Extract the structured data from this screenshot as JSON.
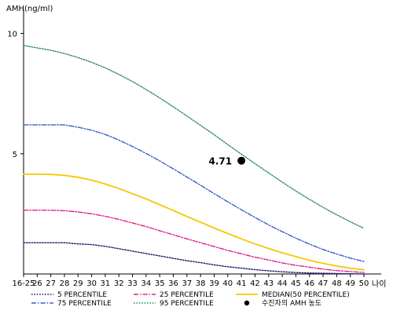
{
  "chart_data": {
    "type": "line",
    "ylabel": "AMH(ng/ml)",
    "xlabel": "나이",
    "x": [
      "16-25",
      "26",
      "27",
      "28",
      "29",
      "30",
      "31",
      "32",
      "33",
      "34",
      "35",
      "36",
      "37",
      "38",
      "39",
      "40",
      "41",
      "42",
      "43",
      "44",
      "45",
      "46",
      "47",
      "48",
      "49",
      "50"
    ],
    "ylim": [
      0,
      11
    ],
    "yticks": [
      5,
      10
    ],
    "series": [
      {
        "name": "5 PERCENTILE",
        "color": "#1a1a6e",
        "style": "dotted",
        "values": [
          1.3,
          1.3,
          1.3,
          1.3,
          1.25,
          1.22,
          1.15,
          1.05,
          0.95,
          0.85,
          0.75,
          0.65,
          0.55,
          0.47,
          0.38,
          0.3,
          0.24,
          0.18,
          0.13,
          0.09,
          0.06,
          0.04,
          0.03,
          0.02,
          0.01,
          0.0
        ]
      },
      {
        "name": "25 PERCENTILE",
        "color": "#e0208c",
        "style": "dashdot",
        "values": [
          2.65,
          2.65,
          2.65,
          2.63,
          2.58,
          2.5,
          2.4,
          2.27,
          2.12,
          1.97,
          1.8,
          1.63,
          1.46,
          1.3,
          1.14,
          0.98,
          0.84,
          0.7,
          0.58,
          0.46,
          0.36,
          0.28,
          0.2,
          0.14,
          0.1,
          0.06
        ]
      },
      {
        "name": "MEDIAN(50 PERCENTILE)",
        "color": "#f5c800",
        "style": "solid",
        "values": [
          4.15,
          4.15,
          4.14,
          4.1,
          4.02,
          3.9,
          3.74,
          3.55,
          3.34,
          3.12,
          2.88,
          2.64,
          2.39,
          2.15,
          1.91,
          1.68,
          1.46,
          1.25,
          1.06,
          0.88,
          0.72,
          0.57,
          0.44,
          0.33,
          0.24,
          0.17
        ]
      },
      {
        "name": "75 PERCENTILE",
        "color": "#3d5fc8",
        "style": "dashdot",
        "values": [
          6.2,
          6.2,
          6.2,
          6.2,
          6.1,
          5.98,
          5.8,
          5.57,
          5.3,
          5.01,
          4.7,
          4.37,
          4.03,
          3.69,
          3.34,
          3.0,
          2.67,
          2.35,
          2.04,
          1.76,
          1.49,
          1.24,
          1.02,
          0.83,
          0.66,
          0.52
        ]
      },
      {
        "name": "95 PERCENTILE",
        "color": "#2e8b57",
        "style": "dotted",
        "values": [
          9.5,
          9.4,
          9.3,
          9.17,
          9.0,
          8.8,
          8.57,
          8.3,
          8.0,
          7.67,
          7.32,
          6.95,
          6.57,
          6.18,
          5.79,
          5.38,
          4.98,
          4.59,
          4.2,
          3.82,
          3.45,
          3.1,
          2.77,
          2.46,
          2.17,
          1.9
        ]
      }
    ],
    "annotations": [
      {
        "x": "41",
        "y": 4.71,
        "label": "4.71"
      }
    ],
    "legend": {
      "placement": "bottom",
      "items": [
        {
          "label": "5 PERCENTILE",
          "color": "#1a1a6e",
          "style": "dotted"
        },
        {
          "label": "25 PERCENTILE",
          "color": "#e0208c",
          "style": "dashdot"
        },
        {
          "label": "MEDIAN(50 PERCENTILE)",
          "color": "#f5c800",
          "style": "solid"
        },
        {
          "label": "75 PERCENTILE",
          "color": "#3d5fc8",
          "style": "dashdot"
        },
        {
          "label": "95 PERCENTILE",
          "color": "#2e8b57",
          "style": "dotted"
        },
        {
          "label": "수진자의 AMH 농도",
          "color": "#000000",
          "style": "marker"
        }
      ]
    }
  }
}
